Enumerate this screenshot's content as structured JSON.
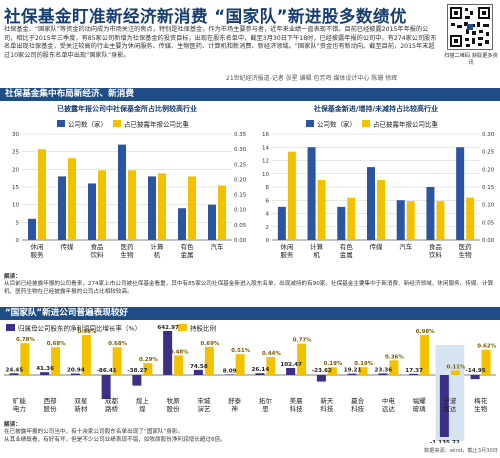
{
  "header": {
    "title": "社保基金盯准新经济新消费 “国家队”新进股多数绩优",
    "intro": "社保基金、“国家队”等资金的动向成为市场关注的焦点，特别是社保基金，作为市场主要参与者，近年来业绩一直表现不错。目前已经披露2015年年报的公司，相比于2015年三季度，有85家公司新增为社保基金的投资目标，出现在股东名单中，截至3月30日下午18时，已经披露年报的公司中，有274家公司股东名单出现社保基金，受关注较高的行业主要为休闲服务、传媒、生物医药、计算机和新消费、新经济领域。“国家队”资金也有新动向。截至目前，2015年末超过10家公司的股东名单中出现“国家队”身影。",
    "credit": "21世纪经济报道-记者 张星 编辑 包芳鸣 媒体设计中心 陈珊 徐辉",
    "qr_note": "扫描二维码 获取更多资讯"
  },
  "section1": {
    "band": "社保基金集中布局新经济、新消费",
    "left_subtitle": "已披露年报公司中社保基金所占比例较高行业",
    "right_subtitle": "社保基金新进/增持/未减持占比较高行业",
    "note_label": "解读：",
    "note_text": "从目前已经披露年报的公司看来，274家上市公司被社保基金看重，其中有85家公司社保基金新进入股东名单，出现减持的有90家。社保基金主要集中于新消费、新经济领域，休闲服务、传媒、计算机、医药生物在已经披露年报的公司占比相较较高。"
  },
  "section2": {
    "band": "“国家队”新进公司普遍表现较好",
    "note_label": "解读：",
    "note_text": "在已披露年报的公司当中，有十余家公司股东名单出现了“国家队”身影。",
    "note_text2": "从其业绩既看，有好有坏，但是不少公司业绩表现不错，如牧原股份净利润增长超过6倍。",
    "source": "数据来源：wind，截止3月30日"
  },
  "chart_data": [
    {
      "type": "bar",
      "title": "已披露年报公司中社保基金所占比例较高行业",
      "categories": [
        "休闲服务",
        "传媒",
        "食品饮料",
        "医药生物",
        "计算机",
        "有色金属",
        "汽车"
      ],
      "series": [
        {
          "name": "公司数（家）",
          "axis": "left",
          "color": "#2b55a0",
          "values": [
            6,
            18,
            16,
            27,
            18,
            9,
            10
          ]
        },
        {
          "name": "占已披露年报公司比重",
          "axis": "right",
          "color": "#f2c200",
          "values": [
            0.3,
            0.27,
            0.23,
            0.23,
            0.22,
            0.21,
            0.18
          ]
        }
      ],
      "ylim_left": [
        0,
        30
      ],
      "yticks_left": [
        0,
        5,
        10,
        15,
        20,
        25,
        30
      ],
      "ylim_right": [
        0,
        0.35
      ],
      "yticks_right": [
        0,
        0.05,
        0.1,
        0.15,
        0.2,
        0.25,
        0.3,
        0.35
      ],
      "yticks_right_labels": [
        "0.00",
        "0.05",
        "0.10",
        "0.15",
        "0.20",
        "0.25",
        "0.30",
        "0.35"
      ],
      "grid": true,
      "legend": "top"
    },
    {
      "type": "bar",
      "title": "社保基金新进/增持/未减持占比较高行业",
      "categories": [
        "休闲服务",
        "计算机",
        "有色金属",
        "传媒",
        "汽车",
        "食品饮料",
        "医药生物"
      ],
      "series": [
        {
          "name": "公司数（家）",
          "axis": "left",
          "color": "#2b55a0",
          "values": [
            5,
            14,
            5,
            11,
            6,
            8,
            14
          ]
        },
        {
          "name": "占已披露年报公司比重",
          "axis": "right",
          "color": "#f2c200",
          "values": [
            0.25,
            0.17,
            0.12,
            0.17,
            0.11,
            0.11,
            0.12
          ]
        }
      ],
      "ylim_left": [
        0,
        16
      ],
      "yticks_left": [
        0,
        2,
        4,
        6,
        8,
        10,
        12,
        14,
        16
      ],
      "ylim_right": [
        0,
        0.3
      ],
      "yticks_right": [
        0,
        0.05,
        0.1,
        0.15,
        0.2,
        0.25,
        0.3
      ],
      "yticks_right_labels": [
        "0.00",
        "0.05",
        "0.10",
        "0.15",
        "0.20",
        "0.25",
        "0.30"
      ],
      "grid": true,
      "legend": "top"
    },
    {
      "type": "bar",
      "title": "",
      "categories": [
        "旷能电力",
        "西部股份",
        "双星新材",
        "成都路桥",
        "煌上煌",
        "牧原股份",
        "宋城演艺",
        "舒泰神",
        "拓尔思",
        "美晨科技",
        "新天科技",
        "赢合科技",
        "中电远达",
        "福耀玻璃",
        "宁波富达",
        "梅花生物"
      ],
      "series": [
        {
          "name": "归属母公司股东的净利润同比增长率（%）",
          "color": "#3b2f86",
          "values": [
            24.45,
            41.36,
            20.94,
            -86.41,
            -38.27,
            642.97,
            74.58,
            8.09,
            26.14,
            102.47,
            -23.62,
            19.21,
            23.36,
            17.37,
            -1135.72,
            -14.95
          ],
          "labels": [
            "24.45",
            "41.36",
            "20.94",
            "-86.41",
            "-38.27",
            "642.97",
            "74.58",
            "8.09",
            "26.14",
            "102.47",
            "-23.62",
            "19.21",
            "23.36",
            "17.37",
            "-1,135.72",
            "-14.95"
          ]
        },
        {
          "name": "持股比例",
          "color": "#f2c200",
          "values": [
            0.78,
            0.68,
            0.98,
            0.68,
            0.29,
            0.48,
            0.69,
            0.51,
            0.44,
            0.77,
            0.19,
            0.19,
            0.36,
            0.98,
            0.11,
            0.62
          ],
          "labels": [
            "0.78%",
            "0.68%",
            "0.98%",
            "0.68%",
            "0.29%",
            "0.48%",
            "0.69%",
            "0.51%",
            "0.44%",
            "0.77%",
            "0.19%",
            "0.19%",
            "0.36%",
            "0.98%",
            "0.11%",
            "0.62%"
          ]
        }
      ],
      "highlight_category": "宁波富达",
      "legend": "top-left"
    }
  ]
}
